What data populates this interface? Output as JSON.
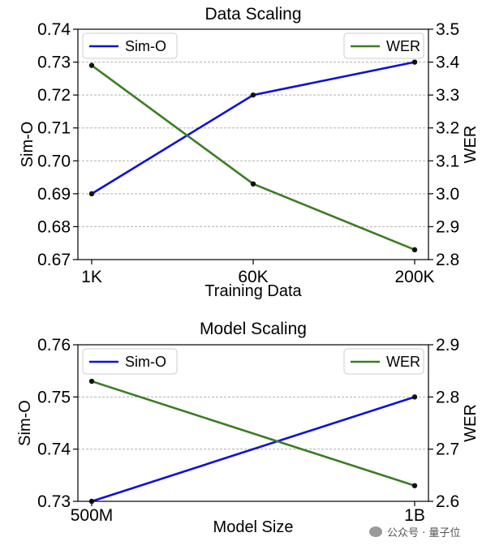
{
  "chart_data": [
    {
      "type": "line",
      "title": "Data Scaling",
      "xlabel": "Training Data",
      "categories": [
        "1K",
        "60K",
        "200K"
      ],
      "ylabel_left": "Sim-O",
      "ylabel_right": "WER",
      "ylim_left": [
        0.67,
        0.74
      ],
      "ylim_right": [
        2.8,
        3.5
      ],
      "yticks_left": [
        "0.67",
        "0.68",
        "0.69",
        "0.70",
        "0.71",
        "0.72",
        "0.73",
        "0.74"
      ],
      "yticks_right": [
        "2.8",
        "2.9",
        "3.0",
        "3.1",
        "3.2",
        "3.3",
        "3.4",
        "3.5"
      ],
      "grid": true,
      "series": [
        {
          "name": "Sim-O",
          "axis": "left",
          "color": "#1010d8",
          "values": [
            0.69,
            0.72,
            0.73
          ],
          "legend": "top-left"
        },
        {
          "name": "WER",
          "axis": "right",
          "color": "#3a7d22",
          "values": [
            3.39,
            3.03,
            2.83
          ],
          "legend": "top-right"
        }
      ]
    },
    {
      "type": "line",
      "title": "Model Scaling",
      "xlabel": "Model Size",
      "categories": [
        "500M",
        "1B"
      ],
      "ylabel_left": "Sim-O",
      "ylabel_right": "WER",
      "ylim_left": [
        0.73,
        0.76
      ],
      "ylim_right": [
        2.6,
        2.9
      ],
      "yticks_left": [
        "0.73",
        "0.74",
        "0.75",
        "0.76"
      ],
      "yticks_right": [
        "2.6",
        "2.7",
        "2.8",
        "2.9"
      ],
      "grid": true,
      "series": [
        {
          "name": "Sim-O",
          "axis": "left",
          "color": "#1010d8",
          "values": [
            0.73,
            0.75
          ],
          "legend": "top-left"
        },
        {
          "name": "WER",
          "axis": "right",
          "color": "#3a7d22",
          "values": [
            2.83,
            2.63
          ],
          "legend": "top-right"
        }
      ]
    }
  ],
  "watermark": {
    "text": "公众号 · 量子位"
  }
}
